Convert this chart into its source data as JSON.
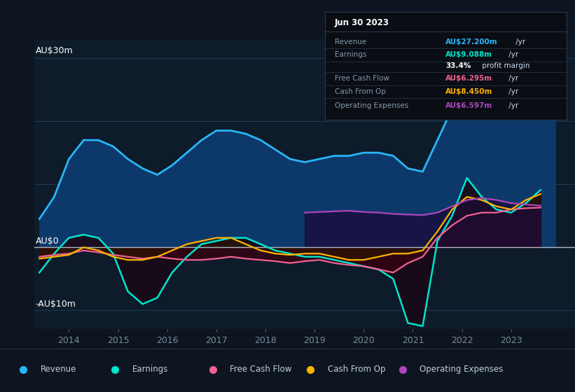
{
  "bg_color": "#0d1520",
  "plot_bg_color": "#0d1b2a",
  "ylim": [
    -13,
    33
  ],
  "xlim": [
    2013.3,
    2024.3
  ],
  "xticks": [
    2014,
    2015,
    2016,
    2017,
    2018,
    2019,
    2020,
    2021,
    2022,
    2023
  ],
  "grid_color": "#1e3a5a",
  "zero_line_color": "#b0b8c0",
  "ylabel_30": "AU$30m",
  "ylabel_0": "AU$0",
  "ylabel_neg10": "-AU$10m",
  "tooltip_title": "Jun 30 2023",
  "tooltip_rows": [
    {
      "label": "Revenue",
      "value": "AU$27.200m",
      "suffix": " /yr",
      "vcolor": "#29b6f6",
      "label_color": "#8899aa"
    },
    {
      "label": "Earnings",
      "value": "AU$9.088m",
      "suffix": " /yr",
      "vcolor": "#00e5cc",
      "label_color": "#8899aa"
    },
    {
      "label": "",
      "value": "33.4%",
      "suffix": " profit margin",
      "vcolor": "#ffffff",
      "label_color": "#8899aa"
    },
    {
      "label": "Free Cash Flow",
      "value": "AU$6.295m",
      "suffix": " /yr",
      "vcolor": "#f06292",
      "label_color": "#8899aa"
    },
    {
      "label": "Cash From Op",
      "value": "AU$8.450m",
      "suffix": " /yr",
      "vcolor": "#ffb300",
      "label_color": "#8899aa"
    },
    {
      "label": "Operating Expenses",
      "value": "AU$6.597m",
      "suffix": " /yr",
      "vcolor": "#ab47bc",
      "label_color": "#8899aa"
    }
  ],
  "series": {
    "revenue": {
      "color": "#29b6f6",
      "fill_color": "#0d3a6e",
      "fill_alpha": 0.95,
      "lw": 2.0,
      "x": [
        2013.4,
        2013.7,
        2014.0,
        2014.3,
        2014.6,
        2014.9,
        2015.2,
        2015.5,
        2015.8,
        2016.1,
        2016.4,
        2016.7,
        2017.0,
        2017.3,
        2017.6,
        2017.9,
        2018.2,
        2018.5,
        2018.8,
        2019.1,
        2019.4,
        2019.7,
        2020.0,
        2020.3,
        2020.6,
        2020.9,
        2021.2,
        2021.5,
        2021.8,
        2022.1,
        2022.4,
        2022.7,
        2023.0,
        2023.3,
        2023.6,
        2023.9
      ],
      "y": [
        4.5,
        8,
        14,
        17,
        17,
        16,
        14,
        12.5,
        11.5,
        13,
        15,
        17,
        18.5,
        18.5,
        18,
        17,
        15.5,
        14,
        13.5,
        14,
        14.5,
        14.5,
        15,
        15,
        14.5,
        12.5,
        12,
        17,
        22,
        26,
        24,
        22.5,
        22,
        24,
        27.2,
        30
      ]
    },
    "earnings": {
      "color": "#00e5cc",
      "fill_color": "#1a0a18",
      "fill_alpha": 0.9,
      "lw": 1.8,
      "x": [
        2013.4,
        2013.7,
        2014.0,
        2014.3,
        2014.6,
        2014.9,
        2015.2,
        2015.5,
        2015.8,
        2016.1,
        2016.4,
        2016.7,
        2017.0,
        2017.3,
        2017.6,
        2017.9,
        2018.2,
        2018.5,
        2018.8,
        2019.1,
        2019.4,
        2019.7,
        2020.0,
        2020.3,
        2020.6,
        2020.9,
        2021.2,
        2021.5,
        2021.8,
        2022.1,
        2022.4,
        2022.7,
        2023.0,
        2023.3,
        2023.6
      ],
      "y": [
        -4,
        -1,
        1.5,
        2,
        1.5,
        -1,
        -7,
        -9,
        -8,
        -4,
        -1.5,
        0.5,
        1,
        1.5,
        1.5,
        0.5,
        -0.5,
        -1,
        -1.5,
        -1.5,
        -2,
        -2.5,
        -3,
        -3.5,
        -5,
        -12,
        -12.5,
        1,
        5,
        11,
        8,
        6,
        5.5,
        7,
        9.088
      ]
    },
    "free_cash_flow": {
      "color": "#f06292",
      "fill_color": "#3a0010",
      "fill_alpha": 0.7,
      "lw": 1.6,
      "x": [
        2013.4,
        2013.7,
        2014.0,
        2014.3,
        2014.6,
        2014.9,
        2015.2,
        2015.5,
        2015.8,
        2016.1,
        2016.4,
        2016.7,
        2017.0,
        2017.3,
        2017.6,
        2017.9,
        2018.2,
        2018.5,
        2018.8,
        2019.1,
        2019.4,
        2019.7,
        2020.0,
        2020.3,
        2020.6,
        2020.9,
        2021.2,
        2021.5,
        2021.8,
        2022.1,
        2022.4,
        2022.7,
        2023.0,
        2023.3,
        2023.6
      ],
      "y": [
        -1.5,
        -1.2,
        -1.0,
        -0.5,
        -0.8,
        -1.2,
        -1.5,
        -1.8,
        -1.5,
        -1.8,
        -2.0,
        -2.0,
        -1.8,
        -1.5,
        -1.8,
        -2.0,
        -2.2,
        -2.5,
        -2.2,
        -2.0,
        -2.5,
        -2.8,
        -3.0,
        -3.5,
        -4.0,
        -2.5,
        -1.5,
        1.5,
        3.5,
        5,
        5.5,
        5.5,
        6,
        6.2,
        6.295
      ]
    },
    "cash_from_op": {
      "color": "#ffb300",
      "fill_color": "#2a1800",
      "fill_alpha": 0.6,
      "lw": 1.6,
      "x": [
        2013.4,
        2013.7,
        2014.0,
        2014.3,
        2014.6,
        2014.9,
        2015.2,
        2015.5,
        2015.8,
        2016.1,
        2016.4,
        2016.7,
        2017.0,
        2017.3,
        2017.6,
        2017.9,
        2018.2,
        2018.5,
        2018.8,
        2019.1,
        2019.4,
        2019.7,
        2020.0,
        2020.3,
        2020.6,
        2020.9,
        2021.2,
        2021.5,
        2021.8,
        2022.1,
        2022.4,
        2022.7,
        2023.0,
        2023.3,
        2023.6
      ],
      "y": [
        -1.8,
        -1.5,
        -1.2,
        0.0,
        -0.5,
        -1.5,
        -2.0,
        -2.0,
        -1.5,
        -0.5,
        0.5,
        1.0,
        1.5,
        1.5,
        0.5,
        -0.5,
        -1.0,
        -1.2,
        -1.0,
        -1.0,
        -1.5,
        -2.0,
        -2.0,
        -1.5,
        -1.0,
        -1.0,
        -0.5,
        2.5,
        6,
        8,
        7.5,
        6.5,
        6.0,
        7.5,
        8.45
      ]
    },
    "operating_expenses": {
      "color": "#ab47bc",
      "fill_color": "#1a0a3a",
      "fill_alpha": 0.75,
      "lw": 1.6,
      "x": [
        2018.8,
        2019.1,
        2019.4,
        2019.7,
        2020.0,
        2020.3,
        2020.6,
        2020.9,
        2021.2,
        2021.5,
        2021.8,
        2022.1,
        2022.4,
        2022.7,
        2023.0,
        2023.3,
        2023.6
      ],
      "y": [
        5.5,
        5.6,
        5.7,
        5.8,
        5.6,
        5.5,
        5.3,
        5.2,
        5.1,
        5.5,
        6.5,
        7.5,
        7.8,
        7.5,
        7.0,
        6.8,
        6.597
      ]
    }
  },
  "legend": [
    {
      "label": "Revenue",
      "color": "#29b6f6"
    },
    {
      "label": "Earnings",
      "color": "#00e5cc"
    },
    {
      "label": "Free Cash Flow",
      "color": "#f06292"
    },
    {
      "label": "Cash From Op",
      "color": "#ffb300"
    },
    {
      "label": "Operating Expenses",
      "color": "#ab47bc"
    }
  ]
}
